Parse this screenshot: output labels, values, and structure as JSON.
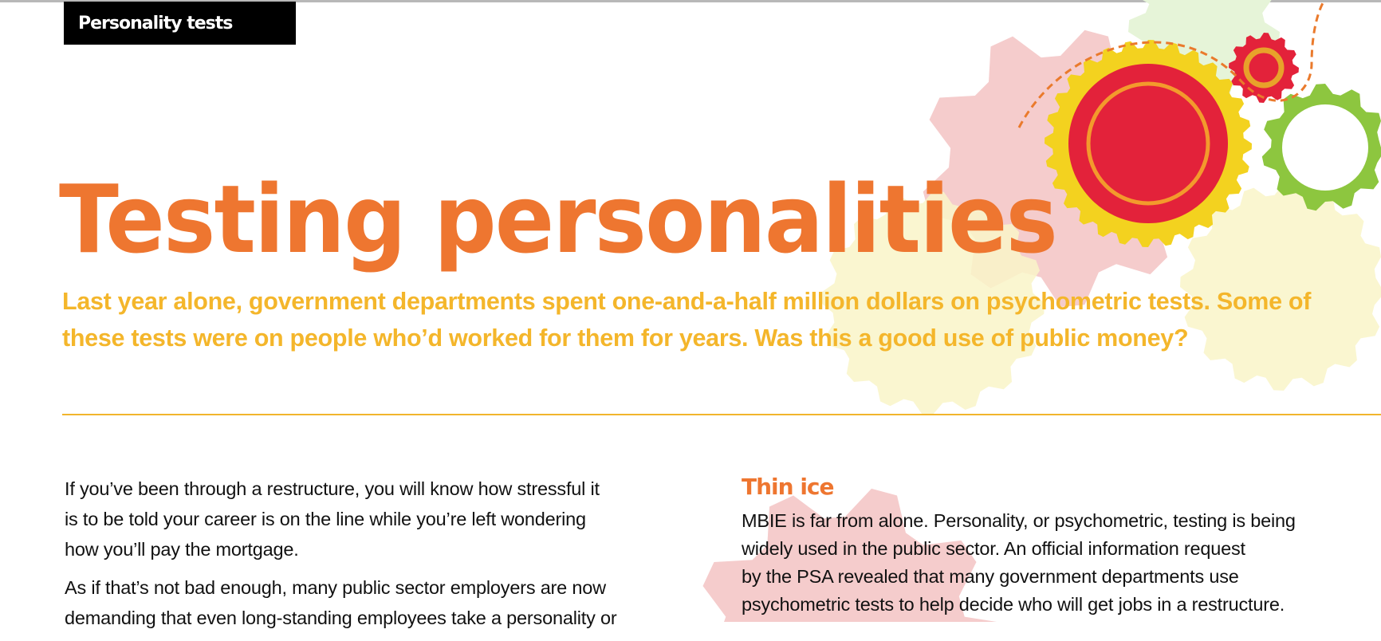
{
  "header": {
    "tag": "Personality tests"
  },
  "article": {
    "title": "Testing personalities",
    "standfirst": "Last year alone, government departments spent one-and-a-half million dollars on psychometric tests. Some of these tests were on people who’d worked for them for years. Was this a good use of public money?",
    "left_column": [
      "If you’ve been through a restructure, you will know how stressful it",
      "is to be told your career is on the line while you’re left wondering",
      "how you’ll pay the mortgage.",
      "As if that’s not bad enough, many public sector employers are now",
      "demanding that even long-standing employees take a personality or"
    ],
    "right_column": {
      "heading": "Thin ice",
      "lines": [
        "MBIE is far from alone. Personality, or psychometric, testing is being",
        "widely used in the public sector. An official information request",
        "by the PSA revealed that many government departments use",
        "psychometric tests to help decide who will get jobs in a restructure."
      ]
    }
  },
  "colors": {
    "title": "#ee7630",
    "standfirst": "#f4b62b",
    "divider": "#f1b52c",
    "gear_red": "#e3223a",
    "gear_yellow": "#f3d21f",
    "gear_green": "#8dc63f",
    "gear_pink": "#f5cccc",
    "gear_pale_yellow": "#f9f4c8"
  },
  "decoration": {
    "icon": "gears-illustration"
  }
}
